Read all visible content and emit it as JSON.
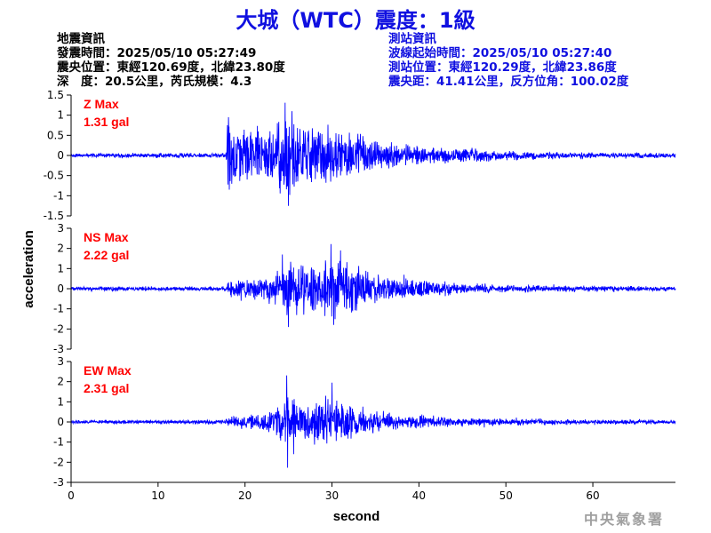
{
  "title": "大城（WTC）震度：1級",
  "quake_info": {
    "heading": "地震資訊",
    "origin_time": "發震時間：2025/05/10 05:27:49",
    "epicenter": "震央位置：東經120.69度，北緯23.80度",
    "depth_magnitude": "深　度：20.5公里，芮氏規模：4.3"
  },
  "station_info": {
    "heading": "測站資訊",
    "wave_start": "波線起始時間：2025/05/10 05:27:40",
    "station_location": "測站位置：東經120.29度，北緯23.86度",
    "distance_azimuth": "震央距：41.41公里，反方位角：100.02度"
  },
  "watermark": "中央氣象署",
  "colors": {
    "trace": "#0000ff",
    "max_label": "#ff0000",
    "title": "#1010e0",
    "axis": "#000000"
  },
  "chart_data": {
    "type": "line",
    "xlabel": "second",
    "ylabel": "acceleration",
    "xlim": [
      0,
      69.5
    ],
    "xticks": [
      0,
      10,
      20,
      30,
      40,
      50,
      60
    ],
    "grid": false,
    "panels": [
      {
        "name": "Z",
        "max_label": "Z Max",
        "max_value": "1.31 gal",
        "ylim": [
          -1.5,
          1.5
        ],
        "yticks": [
          -1.5,
          -1,
          -0.5,
          0,
          0.5,
          1,
          1.5
        ],
        "ytick_labels": [
          "-1.5",
          "-1",
          "-0.5",
          "0",
          "0.5",
          "1",
          "1.5"
        ],
        "noise_amplitude": 0.03,
        "envelope": [
          [
            0,
            0.04
          ],
          [
            17.8,
            0.05
          ],
          [
            18.0,
            0.95
          ],
          [
            19,
            0.75
          ],
          [
            21,
            0.65
          ],
          [
            23,
            0.8
          ],
          [
            24.7,
            1.25
          ],
          [
            26,
            0.85
          ],
          [
            28,
            0.9
          ],
          [
            30,
            0.8
          ],
          [
            32,
            0.65
          ],
          [
            35,
            0.45
          ],
          [
            38,
            0.3
          ],
          [
            42,
            0.25
          ],
          [
            46,
            0.18
          ],
          [
            50,
            0.12
          ],
          [
            55,
            0.09
          ],
          [
            60,
            0.07
          ],
          [
            69.5,
            0.05
          ]
        ],
        "peaks": [
          [
            18.1,
            0.95
          ],
          [
            18.2,
            -0.85
          ],
          [
            24.6,
            1.31
          ],
          [
            25.0,
            -1.25
          ],
          [
            25.4,
            1.1
          ]
        ]
      },
      {
        "name": "NS",
        "max_label": "NS Max",
        "max_value": "2.22 gal",
        "ylim": [
          -3,
          3
        ],
        "yticks": [
          -3,
          -2,
          -1,
          0,
          1,
          2,
          3
        ],
        "ytick_labels": [
          "-3",
          "-2",
          "-1",
          "0",
          "1",
          "2",
          "3"
        ],
        "noise_amplitude": 0.06,
        "envelope": [
          [
            0,
            0.08
          ],
          [
            17.8,
            0.1
          ],
          [
            18.0,
            0.5
          ],
          [
            20,
            0.5
          ],
          [
            22,
            0.7
          ],
          [
            24,
            1.3
          ],
          [
            25,
            1.5
          ],
          [
            27,
            1.3
          ],
          [
            29,
            1.6
          ],
          [
            30,
            1.7
          ],
          [
            32,
            1.4
          ],
          [
            34,
            1.0
          ],
          [
            37,
            0.6
          ],
          [
            40,
            0.45
          ],
          [
            45,
            0.3
          ],
          [
            50,
            0.2
          ],
          [
            55,
            0.17
          ],
          [
            60,
            0.15
          ],
          [
            69.5,
            0.1
          ]
        ],
        "peaks": [
          [
            24.3,
            1.7
          ],
          [
            25.0,
            -1.9
          ],
          [
            29.9,
            2.22
          ],
          [
            30.2,
            -1.8
          ],
          [
            31.0,
            1.9
          ]
        ]
      },
      {
        "name": "EW",
        "max_label": "EW Max",
        "max_value": "2.31 gal",
        "ylim": [
          -3,
          3
        ],
        "yticks": [
          -3,
          -2,
          -1,
          0,
          1,
          2,
          3
        ],
        "ytick_labels": [
          "-3",
          "-2",
          "-1",
          "0",
          "1",
          "2",
          "3"
        ],
        "noise_amplitude": 0.05,
        "envelope": [
          [
            0,
            0.07
          ],
          [
            17.8,
            0.09
          ],
          [
            18.0,
            0.3
          ],
          [
            20,
            0.35
          ],
          [
            22,
            0.45
          ],
          [
            24,
            1.1
          ],
          [
            25,
            1.4
          ],
          [
            27,
            1.1
          ],
          [
            29,
            1.2
          ],
          [
            30,
            1.4
          ],
          [
            32,
            1.0
          ],
          [
            35,
            0.6
          ],
          [
            38,
            0.4
          ],
          [
            42,
            0.3
          ],
          [
            46,
            0.22
          ],
          [
            50,
            0.17
          ],
          [
            55,
            0.14
          ],
          [
            60,
            0.12
          ],
          [
            69.5,
            0.08
          ]
        ],
        "peaks": [
          [
            24.8,
            2.31
          ],
          [
            24.9,
            -2.27
          ],
          [
            30.0,
            1.95
          ],
          [
            25.6,
            -1.6
          ],
          [
            29.3,
            1.3
          ]
        ]
      }
    ]
  }
}
